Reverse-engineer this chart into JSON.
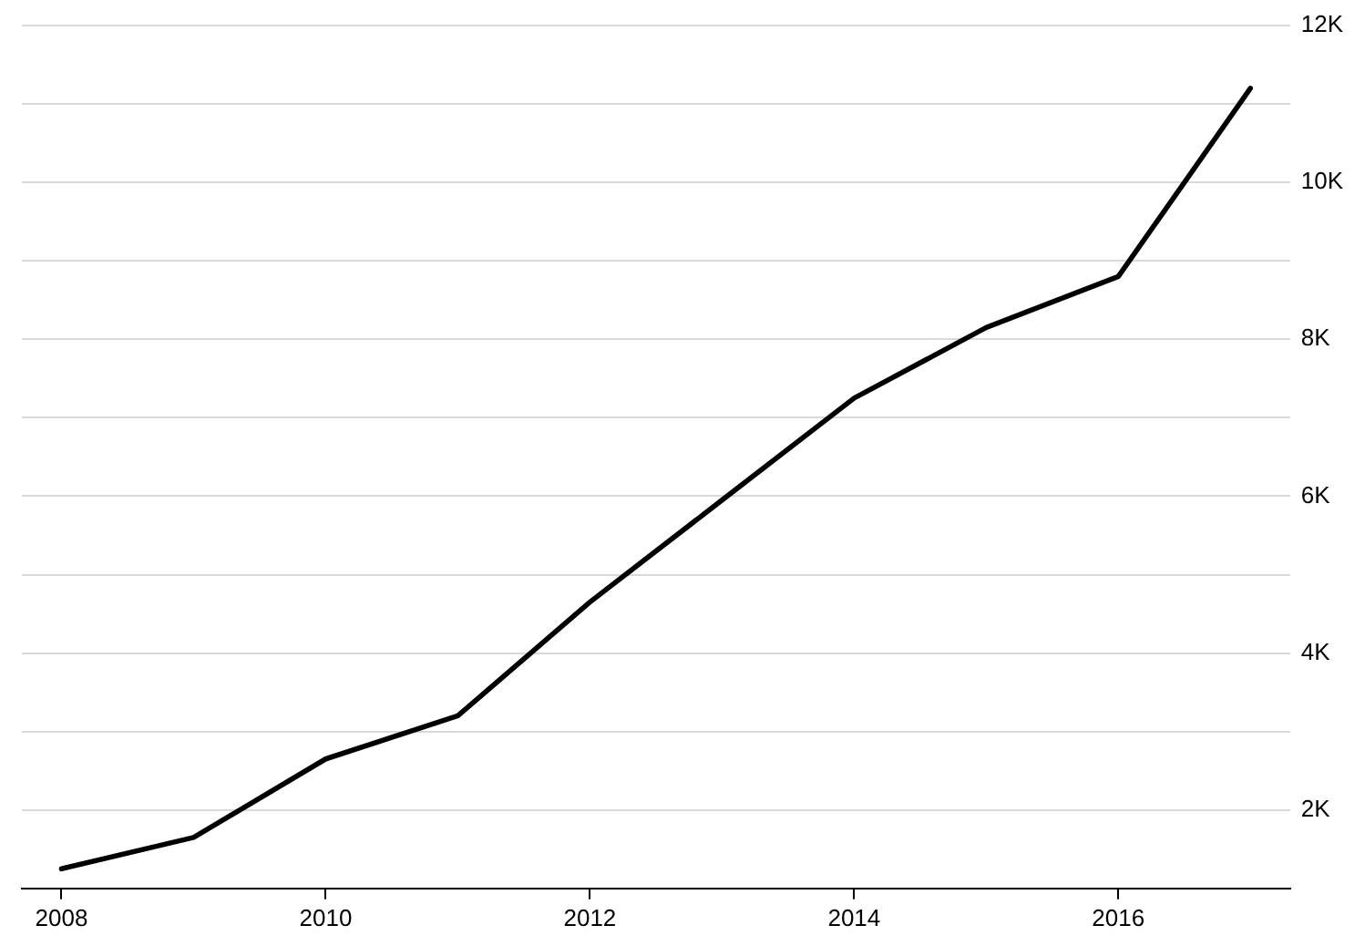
{
  "chart_data": {
    "type": "line",
    "x": [
      2008,
      2009,
      2010,
      2011,
      2012,
      2013,
      2014,
      2015,
      2016,
      2017
    ],
    "series": [
      {
        "color": "#000000",
        "values": [
          1250,
          1650,
          2650,
          3200,
          4650,
          5950,
          7250,
          8150,
          8800,
          11200
        ]
      }
    ],
    "xlim": [
      2007.7,
      2017.3
    ],
    "xticks": [
      2008,
      2010,
      2012,
      2014,
      2016
    ],
    "ylim": [
      1000,
      12000
    ],
    "yticks": [
      {
        "value": 1000,
        "label": null
      },
      {
        "value": 2000,
        "label": "2K"
      },
      {
        "value": 3000,
        "label": null
      },
      {
        "value": 4000,
        "label": "4K"
      },
      {
        "value": 5000,
        "label": null
      },
      {
        "value": 6000,
        "label": "6K"
      },
      {
        "value": 7000,
        "label": null
      },
      {
        "value": 8000,
        "label": "8K"
      },
      {
        "value": 9000,
        "label": null
      },
      {
        "value": 10000,
        "label": "10K"
      },
      {
        "value": 11000,
        "label": null
      },
      {
        "value": 12000,
        "label": "12K"
      }
    ],
    "grid": "y",
    "legend": false,
    "marker": "none",
    "line_style": "solid"
  }
}
